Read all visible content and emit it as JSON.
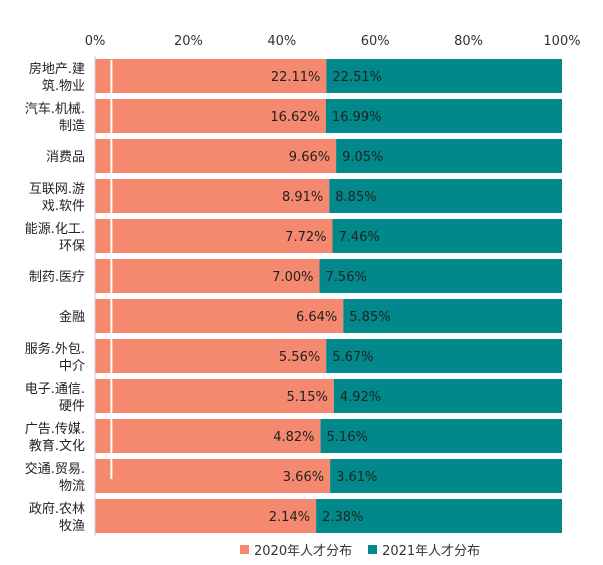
{
  "chart_data": {
    "type": "bar",
    "stacked": "percent",
    "orientation": "horizontal",
    "x_ticks": [
      "0%",
      "20%",
      "40%",
      "60%",
      "80%",
      "100%"
    ],
    "xlim": [
      0,
      100
    ],
    "categories": [
      [
        "房地产.建",
        "筑.物业"
      ],
      [
        "汽车.机械.",
        "制造"
      ],
      [
        "消费品"
      ],
      [
        "互联网.游",
        "戏.软件"
      ],
      [
        "能源.化工.",
        "环保"
      ],
      [
        "制药.医疗"
      ],
      [
        "金融"
      ],
      [
        "服务.外包.",
        "中介"
      ],
      [
        "电子.通信.",
        "硬件"
      ],
      [
        "广告.传媒.",
        "教育.文化"
      ],
      [
        "交通.贸易.",
        "物流"
      ],
      [
        "政府.农林",
        "牧渔"
      ]
    ],
    "series": [
      {
        "name": "2020年人才分布",
        "color": "#F4896F",
        "values": [
          22.11,
          16.62,
          9.66,
          8.91,
          7.72,
          7.0,
          6.64,
          5.56,
          5.15,
          4.82,
          3.66,
          2.14
        ],
        "labels": [
          "22.11%",
          "16.62%",
          "9.66%",
          "8.91%",
          "7.72%",
          "7.00%",
          "6.64%",
          "5.56%",
          "5.15%",
          "4.82%",
          "3.66%",
          "2.14%"
        ]
      },
      {
        "name": "2021年人才分布",
        "color": "#00888A",
        "values": [
          22.51,
          16.99,
          9.05,
          8.85,
          7.46,
          7.56,
          5.85,
          5.67,
          4.92,
          5.16,
          3.61,
          2.38
        ],
        "labels": [
          "22.51%",
          "16.99%",
          "9.05%",
          "8.85%",
          "7.46%",
          "7.56%",
          "5.85%",
          "5.67%",
          "4.92%",
          "5.16%",
          "3.61%",
          "2.38%"
        ]
      }
    ],
    "legend_position": "bottom"
  }
}
